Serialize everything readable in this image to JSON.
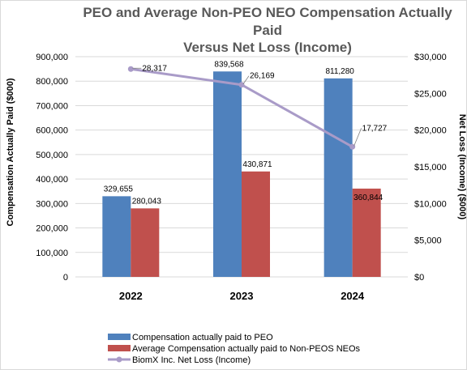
{
  "chart_data": {
    "type": "bar",
    "title_lines": [
      "PEO and Average Non-PEO NEO Compensation Actually",
      "Paid",
      "Versus Net Loss (Income)"
    ],
    "categories": [
      "2022",
      "2023",
      "2024"
    ],
    "ylabel": "Compensation Actually Paid ($000)",
    "y2label": "Net Loss (Income) ($000)",
    "ylim": [
      0,
      900000
    ],
    "y2lim": [
      0,
      30000
    ],
    "yticks": [
      "0",
      "100,000",
      "200,000",
      "300,000",
      "400,000",
      "500,000",
      "600,000",
      "700,000",
      "800,000",
      "900,000"
    ],
    "y2ticks": [
      "$0",
      "$5,000",
      "$10,000",
      "$15,000",
      "$20,000",
      "$25,000",
      "$30,000"
    ],
    "grid": true,
    "legend_position": "bottom",
    "series": [
      {
        "name": "Compensation actually paid to PEO",
        "kind": "bar",
        "axis": "left",
        "color": "#4f81bd",
        "values": [
          329655,
          839568,
          811280
        ],
        "labels": [
          "329,655",
          "839,568",
          "811,280"
        ]
      },
      {
        "name": "Average Compensation actually paid to Non-PEOS NEOs",
        "kind": "bar",
        "axis": "left",
        "color": "#c0504d",
        "values": [
          280043,
          430871,
          360844
        ],
        "labels": [
          "280,043",
          "430,871",
          "360,844"
        ]
      },
      {
        "name": "BiomX Inc. Net Loss (Income)",
        "kind": "line",
        "axis": "right",
        "color": "#a99bc8",
        "values": [
          28317,
          26169,
          17727
        ],
        "labels": [
          "28,317",
          "26,169",
          "17,727"
        ]
      }
    ]
  }
}
